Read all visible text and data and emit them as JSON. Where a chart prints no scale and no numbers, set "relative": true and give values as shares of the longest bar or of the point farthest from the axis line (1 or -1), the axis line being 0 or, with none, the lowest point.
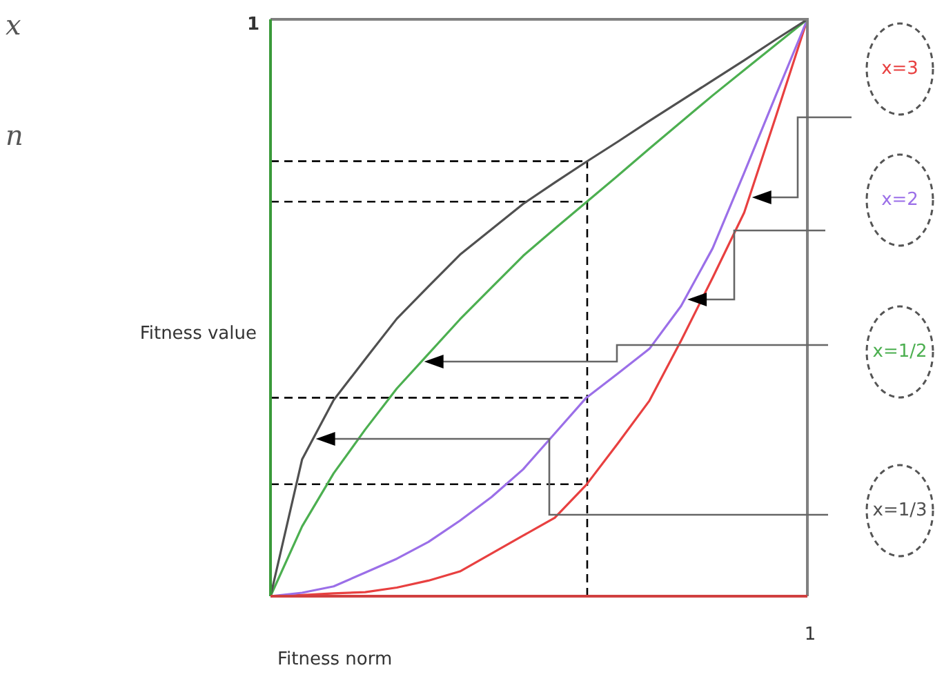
{
  "chart_data": {
    "type": "line",
    "xlabel": "Fitness norm",
    "ylabel": "Fitness value",
    "annotations": [
      "x",
      "n",
      "1",
      "1"
    ],
    "relative": true,
    "legend": false,
    "marker": "none",
    "line_style": "solid",
    "categories": [
      null,
      null,
      null,
      null,
      null,
      null,
      null,
      null,
      null,
      null,
      null,
      null,
      null,
      null,
      null,
      null,
      null,
      null
    ],
    "series": [
      {
        "name": "x=1/3",
        "color": "#505050",
        "values": [
          0,
          0.237,
          0.34,
          0.411,
          0.481,
          0.537,
          0.592,
          0.636,
          0.68,
          0.717,
          0.753,
          0.788,
          0.824,
          0.859,
          0.894,
          0.929,
          0.965,
          1
        ]
      },
      {
        "name": "x=1/2",
        "color": "#4caf50",
        "values": [
          0,
          0.121,
          0.213,
          0.289,
          0.36,
          0.42,
          0.48,
          0.535,
          0.59,
          0.637,
          0.683,
          0.729,
          0.776,
          0.822,
          0.868,
          0.912,
          0.956,
          1
        ]
      },
      {
        "name": "x=2",
        "color": "#9b6fe8",
        "values": [
          0,
          0.006,
          0.017,
          0.041,
          0.065,
          0.094,
          0.131,
          0.172,
          0.22,
          0.282,
          0.344,
          0.386,
          0.429,
          0.503,
          0.603,
          0.734,
          0.868,
          1
        ]
      },
      {
        "name": "x=3",
        "color": "#e84040",
        "values": [
          0,
          0.002,
          0.005,
          0.007,
          0.015,
          0.027,
          0.043,
          0.074,
          0.105,
          0.136,
          0.193,
          0.265,
          0.339,
          0.443,
          0.552,
          0.665,
          0.831,
          1
        ]
      }
    ],
    "ref_lines": [
      {
        "axis": "y",
        "value": 0.754,
        "color": "#000000",
        "line_style": "dashed"
      },
      {
        "axis": "y",
        "value": 0.684,
        "color": "#000000",
        "line_style": "dashed"
      },
      {
        "axis": "y",
        "value": 0.344,
        "color": "#000000",
        "line_style": "dashed"
      },
      {
        "axis": "y",
        "value": 0.194,
        "color": "#000000",
        "line_style": "dashed"
      }
    ]
  }
}
